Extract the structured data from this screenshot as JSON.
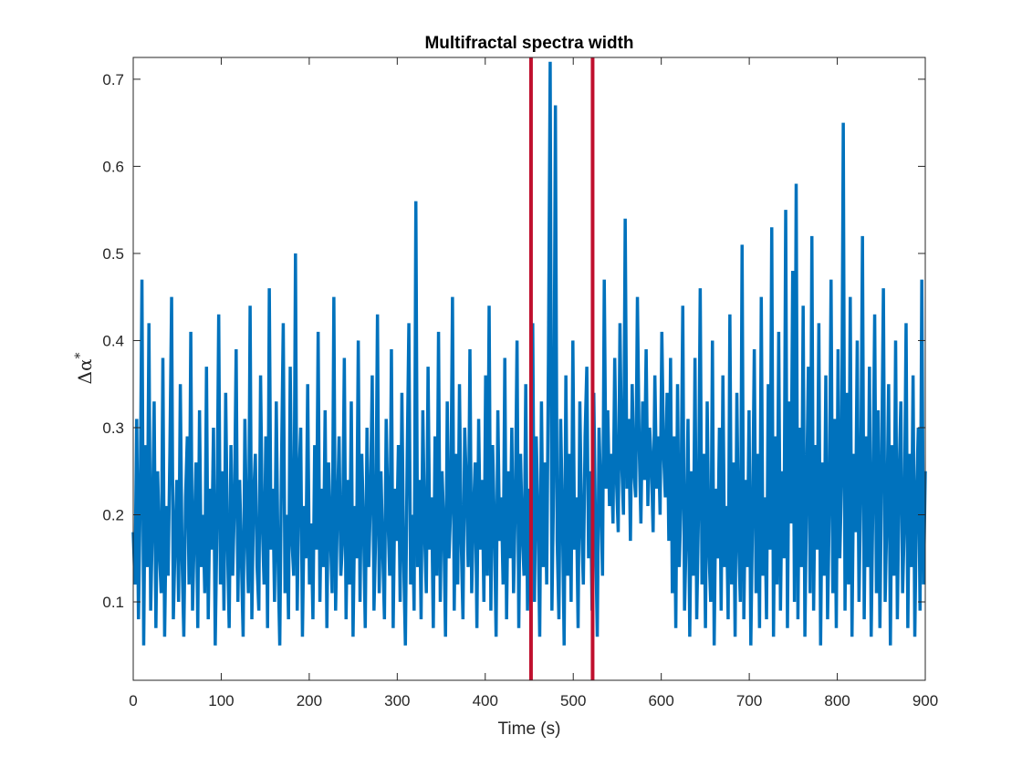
{
  "chart_data": {
    "type": "line",
    "title": "Multifractal spectra width",
    "xlabel": "Time (s)",
    "ylabel_base": "Δα",
    "ylabel_sup": "*",
    "xlim": [
      0,
      900
    ],
    "ylim": [
      0.01,
      0.725
    ],
    "xticks": [
      0,
      100,
      200,
      300,
      400,
      500,
      600,
      700,
      800,
      900
    ],
    "yticks": [
      0.1,
      0.2,
      0.3,
      0.4,
      0.5,
      0.6,
      0.7
    ],
    "grid": false,
    "line_color": "#0072BD",
    "vline_color": "#C0102E",
    "vlines": [
      452,
      522
    ],
    "series": [
      {
        "values": [
          0.18,
          0.12,
          0.31,
          0.08,
          0.22,
          0.47,
          0.05,
          0.28,
          0.14,
          0.42,
          0.09,
          0.19,
          0.33,
          0.07,
          0.25,
          0.16,
          0.11,
          0.38,
          0.06,
          0.21,
          0.13,
          0.27,
          0.45,
          0.08,
          0.17,
          0.24,
          0.1,
          0.35,
          0.15,
          0.06,
          0.22,
          0.29,
          0.12,
          0.41,
          0.09,
          0.18,
          0.26,
          0.07,
          0.32,
          0.14,
          0.2,
          0.11,
          0.37,
          0.08,
          0.23,
          0.16,
          0.3,
          0.05,
          0.19,
          0.43,
          0.12,
          0.25,
          0.09,
          0.34,
          0.17,
          0.07,
          0.28,
          0.13,
          0.21,
          0.39,
          0.1,
          0.24,
          0.15,
          0.06,
          0.31,
          0.18,
          0.11,
          0.44,
          0.08,
          0.22,
          0.27,
          0.14,
          0.09,
          0.36,
          0.19,
          0.12,
          0.29,
          0.07,
          0.46,
          0.16,
          0.23,
          0.1,
          0.33,
          0.15,
          0.05,
          0.26,
          0.42,
          0.11,
          0.2,
          0.08,
          0.37,
          0.17,
          0.13,
          0.5,
          0.09,
          0.24,
          0.3,
          0.06,
          0.21,
          0.15,
          0.35,
          0.12,
          0.19,
          0.08,
          0.28,
          0.16,
          0.41,
          0.1,
          0.23,
          0.14,
          0.32,
          0.07,
          0.26,
          0.18,
          0.11,
          0.45,
          0.09,
          0.2,
          0.29,
          0.13,
          0.17,
          0.38,
          0.08,
          0.24,
          0.12,
          0.33,
          0.06,
          0.21,
          0.15,
          0.4,
          0.1,
          0.27,
          0.19,
          0.07,
          0.3,
          0.14,
          0.22,
          0.36,
          0.09,
          0.18,
          0.43,
          0.11,
          0.25,
          0.16,
          0.08,
          0.31,
          0.2,
          0.13,
          0.39,
          0.07,
          0.23,
          0.17,
          0.28,
          0.1,
          0.34,
          0.15,
          0.05,
          0.26,
          0.42,
          0.12,
          0.2,
          0.09,
          0.56,
          0.14,
          0.24,
          0.08,
          0.32,
          0.18,
          0.11,
          0.37,
          0.16,
          0.22,
          0.07,
          0.29,
          0.13,
          0.41,
          0.1,
          0.25,
          0.19,
          0.06,
          0.33,
          0.15,
          0.21,
          0.45,
          0.09,
          0.27,
          0.12,
          0.35,
          0.17,
          0.08,
          0.3,
          0.23,
          0.14,
          0.39,
          0.11,
          0.2,
          0.26,
          0.07,
          0.31,
          0.16,
          0.24,
          0.1,
          0.36,
          0.13,
          0.44,
          0.09,
          0.28,
          0.19,
          0.06,
          0.32,
          0.17,
          0.22,
          0.12,
          0.38,
          0.08,
          0.25,
          0.15,
          0.3,
          0.11,
          0.21,
          0.4,
          0.07,
          0.27,
          0.18,
          0.13,
          0.35,
          0.09,
          0.23,
          0.16,
          0.42,
          0.1,
          0.29,
          0.2,
          0.06,
          0.33,
          0.14,
          0.26,
          0.12,
          0.38,
          0.72,
          0.09,
          0.24,
          0.67,
          0.17,
          0.08,
          0.31,
          0.2,
          0.05,
          0.36,
          0.13,
          0.27,
          0.1,
          0.4,
          0.16,
          0.22,
          0.07,
          0.33,
          0.19,
          0.12,
          0.29,
          0.37,
          0.15,
          0.25,
          0.09,
          0.34,
          0.18,
          0.06,
          0.3,
          0.22,
          0.13,
          0.47,
          0.23,
          0.32,
          0.21,
          0.27,
          0.19,
          0.38,
          0.24,
          0.18,
          0.42,
          0.26,
          0.2,
          0.54,
          0.23,
          0.31,
          0.17,
          0.35,
          0.25,
          0.22,
          0.45,
          0.28,
          0.19,
          0.33,
          0.24,
          0.39,
          0.21,
          0.3,
          0.26,
          0.18,
          0.36,
          0.23,
          0.29,
          0.2,
          0.41,
          0.27,
          0.22,
          0.34,
          0.17,
          0.38,
          0.11,
          0.29,
          0.07,
          0.35,
          0.14,
          0.22,
          0.44,
          0.09,
          0.18,
          0.31,
          0.06,
          0.25,
          0.13,
          0.38,
          0.08,
          0.2,
          0.46,
          0.12,
          0.27,
          0.07,
          0.33,
          0.16,
          0.1,
          0.4,
          0.05,
          0.23,
          0.15,
          0.3,
          0.09,
          0.36,
          0.14,
          0.21,
          0.08,
          0.43,
          0.12,
          0.26,
          0.06,
          0.34,
          0.17,
          0.1,
          0.51,
          0.08,
          0.24,
          0.14,
          0.32,
          0.05,
          0.2,
          0.39,
          0.11,
          0.27,
          0.07,
          0.45,
          0.13,
          0.22,
          0.08,
          0.35,
          0.16,
          0.53,
          0.06,
          0.29,
          0.12,
          0.41,
          0.09,
          0.25,
          0.15,
          0.55,
          0.07,
          0.33,
          0.19,
          0.48,
          0.1,
          0.58,
          0.08,
          0.3,
          0.14,
          0.44,
          0.06,
          0.23,
          0.37,
          0.11,
          0.52,
          0.09,
          0.28,
          0.16,
          0.42,
          0.05,
          0.26,
          0.13,
          0.36,
          0.08,
          0.21,
          0.47,
          0.11,
          0.31,
          0.07,
          0.39,
          0.15,
          0.24,
          0.65,
          0.09,
          0.34,
          0.12,
          0.45,
          0.06,
          0.27,
          0.18,
          0.4,
          0.1,
          0.23,
          0.52,
          0.08,
          0.29,
          0.14,
          0.37,
          0.06,
          0.22,
          0.43,
          0.11,
          0.32,
          0.07,
          0.26,
          0.46,
          0.1,
          0.2,
          0.35,
          0.05,
          0.28,
          0.13,
          0.4,
          0.08,
          0.24,
          0.33,
          0.11,
          0.19,
          0.42,
          0.07,
          0.27,
          0.14,
          0.36,
          0.06,
          0.22,
          0.3,
          0.09,
          0.47,
          0.12,
          0.25
        ]
      }
    ]
  }
}
